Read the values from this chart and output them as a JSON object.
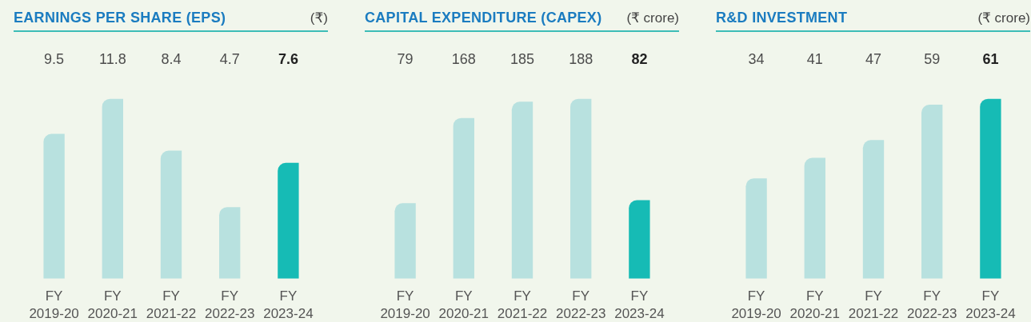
{
  "chart_data": [
    {
      "type": "bar",
      "title": "EARNINGS PER SHARE (EPS)",
      "ylabel": "(₹)",
      "categories": [
        "FY 2019-20",
        "FY 2020-21",
        "FY 2021-22",
        "FY 2022-23",
        "FY 2023-24"
      ],
      "values": [
        9.5,
        11.8,
        8.4,
        4.7,
        7.6
      ],
      "colors": [
        "#b8e1df",
        "#b8e1df",
        "#b8e1df",
        "#b8e1df",
        "#16bbb5"
      ],
      "data_labels": true
    },
    {
      "type": "bar",
      "title": "CAPITAL EXPENDITURE (CAPEX)",
      "ylabel": "(₹ crore)",
      "categories": [
        "FY 2019-20",
        "FY 2020-21",
        "FY 2021-22",
        "FY 2022-23",
        "FY 2023-24"
      ],
      "values": [
        79,
        168,
        185,
        188,
        82
      ],
      "colors": [
        "#b8e1df",
        "#b8e1df",
        "#b8e1df",
        "#b8e1df",
        "#16bbb5"
      ],
      "data_labels": true
    },
    {
      "type": "bar",
      "title": "R&D INVESTMENT",
      "ylabel": "(₹ crore)",
      "categories": [
        "FY 2019-20",
        "FY 2020-21",
        "FY 2021-22",
        "FY 2022-23",
        "FY 2023-24"
      ],
      "values": [
        34,
        41,
        47,
        59,
        61
      ],
      "colors": [
        "#b8e1df",
        "#b8e1df",
        "#b8e1df",
        "#b8e1df",
        "#16bbb5"
      ],
      "data_labels": true
    }
  ]
}
